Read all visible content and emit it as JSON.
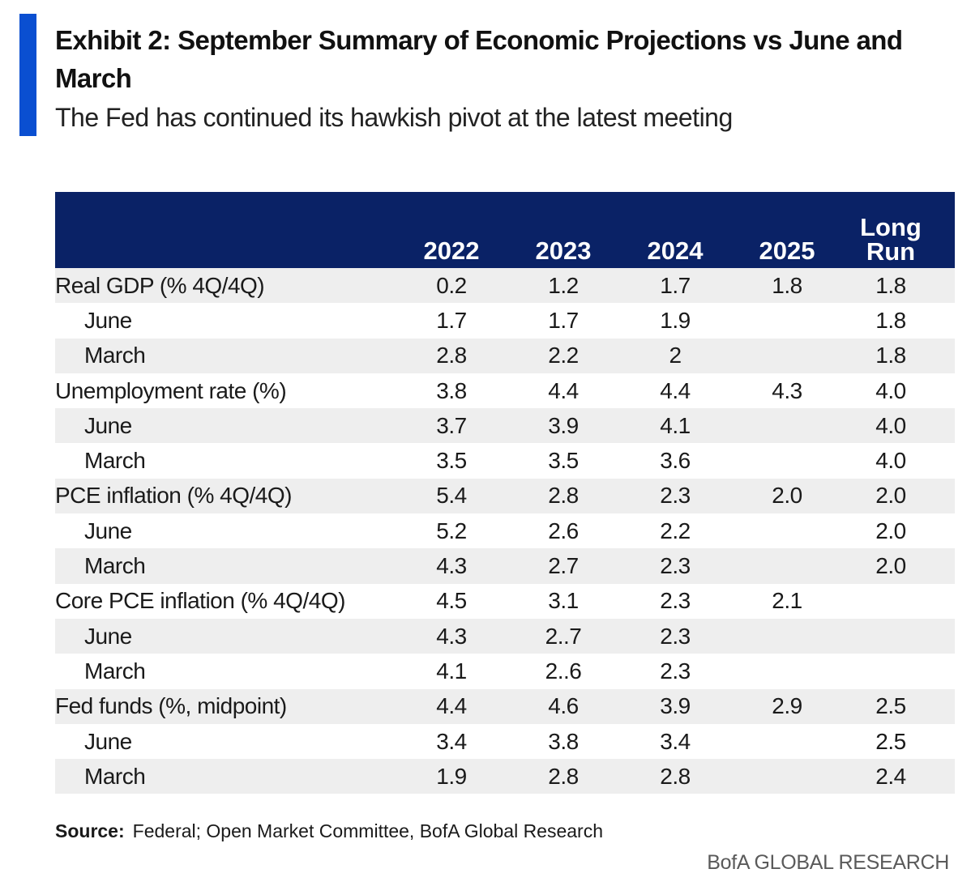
{
  "exhibit": {
    "title": "Exhibit 2: September Summary of Economic Projections vs June and March",
    "subtitle": "The Fed has continued its hawkish pivot at the latest meeting",
    "accent_color": "#0a4fd1",
    "header_color": "#0a2266",
    "shade_color": "#eeeeee"
  },
  "table": {
    "columns": [
      "",
      "2022",
      "2023",
      "2024",
      "2025",
      "Long Run"
    ],
    "long_run_lines": [
      "Long",
      "Run"
    ],
    "rows": [
      {
        "label": "Real GDP (% 4Q/4Q)",
        "sub": false,
        "shaded": true,
        "values": [
          "0.2",
          "1.2",
          "1.7",
          "1.8",
          "1.8"
        ]
      },
      {
        "label": "June",
        "sub": true,
        "shaded": false,
        "values": [
          "1.7",
          "1.7",
          "1.9",
          "",
          "1.8"
        ]
      },
      {
        "label": "March",
        "sub": true,
        "shaded": true,
        "values": [
          "2.8",
          "2.2",
          "2",
          "",
          "1.8"
        ]
      },
      {
        "label": "Unemployment rate  (%)",
        "sub": false,
        "shaded": false,
        "values": [
          "3.8",
          "4.4",
          "4.4",
          "4.3",
          "4.0"
        ]
      },
      {
        "label": "June",
        "sub": true,
        "shaded": true,
        "values": [
          "3.7",
          "3.9",
          "4.1",
          "",
          "4.0"
        ]
      },
      {
        "label": "March",
        "sub": true,
        "shaded": false,
        "values": [
          "3.5",
          "3.5",
          "3.6",
          "",
          "4.0"
        ]
      },
      {
        "label": "PCE inflation  (% 4Q/4Q)",
        "sub": false,
        "shaded": true,
        "values": [
          "5.4",
          "2.8",
          "2.3",
          "2.0",
          "2.0"
        ]
      },
      {
        "label": "June",
        "sub": true,
        "shaded": false,
        "values": [
          "5.2",
          "2.6",
          "2.2",
          "",
          "2.0"
        ]
      },
      {
        "label": "March",
        "sub": true,
        "shaded": true,
        "values": [
          "4.3",
          "2.7",
          "2.3",
          "",
          "2.0"
        ]
      },
      {
        "label": "Core PCE inflation  (% 4Q/4Q)",
        "sub": false,
        "shaded": false,
        "values": [
          "4.5",
          "3.1",
          "2.3",
          "2.1",
          ""
        ]
      },
      {
        "label": "June",
        "sub": true,
        "shaded": true,
        "values": [
          "4.3",
          "2..7",
          "2.3",
          "",
          ""
        ]
      },
      {
        "label": "March",
        "sub": true,
        "shaded": false,
        "values": [
          "4.1",
          "2..6",
          "2.3",
          "",
          ""
        ]
      },
      {
        "label": "Fed funds (%, midpoint)",
        "sub": false,
        "shaded": true,
        "values": [
          "4.4",
          "4.6",
          "3.9",
          "2.9",
          "2.5"
        ]
      },
      {
        "label": "June",
        "sub": true,
        "shaded": false,
        "values": [
          "3.4",
          "3.8",
          "3.4",
          "",
          "2.5"
        ]
      },
      {
        "label": "March",
        "sub": true,
        "shaded": true,
        "values": [
          "1.9",
          "2.8",
          "2.8",
          "",
          "2.4"
        ]
      }
    ]
  },
  "source": {
    "label": "Source:",
    "text": "Federal; Open Market Committee, BofA Global Research"
  },
  "brand": "BofA GLOBAL RESEARCH"
}
